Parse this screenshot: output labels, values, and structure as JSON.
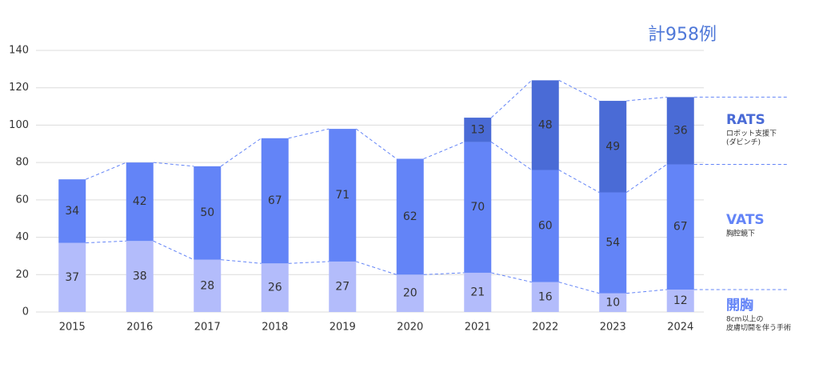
{
  "chart_data": {
    "type": "stacked_bar",
    "title": "計958例",
    "categories": [
      "2015",
      "2016",
      "2017",
      "2018",
      "2019",
      "2020",
      "2021",
      "2022",
      "2023",
      "2024"
    ],
    "series": [
      {
        "name": "開胸",
        "description": [
          "8cm以上の",
          "皮膚切開を伴う手術"
        ],
        "color": "#b3bcfb",
        "values": [
          37,
          38,
          28,
          26,
          27,
          20,
          21,
          16,
          10,
          12
        ]
      },
      {
        "name": "VATS",
        "description": [
          "胸腔鏡下"
        ],
        "color": "#6384f7",
        "values": [
          34,
          42,
          50,
          67,
          71,
          62,
          70,
          60,
          54,
          67
        ]
      },
      {
        "name": "RATS",
        "description": [
          "ロボット支援下",
          "(ダビンチ)"
        ],
        "color": "#4a6bd6",
        "values": [
          null,
          null,
          null,
          null,
          null,
          null,
          13,
          48,
          49,
          36
        ]
      }
    ],
    "ylim": [
      0,
      140
    ],
    "yticks": [
      0,
      20,
      40,
      60,
      80,
      100,
      120,
      140
    ],
    "grid": true
  }
}
